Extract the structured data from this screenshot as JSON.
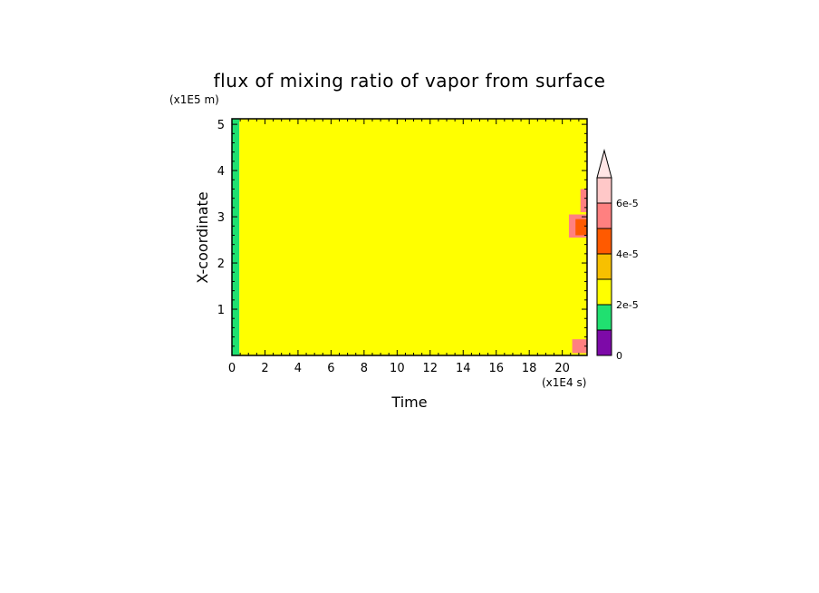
{
  "chart_data": {
    "type": "heatmap",
    "title": "flux of mixing ratio of vapor from surface",
    "xlabel": "Time",
    "ylabel": "X-coordinate",
    "x_unit": "(x1E4 s)",
    "y_unit": "(x1E5 m)",
    "xlim": [
      0,
      21.5
    ],
    "ylim": [
      0,
      5.12
    ],
    "x_ticks": [
      "0",
      "2",
      "4",
      "6",
      "8",
      "10",
      "12",
      "14",
      "16",
      "18",
      "20"
    ],
    "y_ticks": [
      "1",
      "2",
      "3",
      "4",
      "5"
    ],
    "x_tick_values": [
      0,
      2,
      4,
      6,
      8,
      10,
      12,
      14,
      16,
      18,
      20
    ],
    "y_tick_values": [
      1,
      2,
      3,
      4,
      5
    ],
    "background_level": "2e-5 to 3e-5",
    "regions": [
      {
        "x0": 0,
        "x1": 0.45,
        "y0": 0,
        "y1": 5.12,
        "level": 1
      },
      {
        "x0": 0.45,
        "x1": 21.5,
        "y0": 0,
        "y1": 5.12,
        "level": 2
      },
      {
        "x0": 20.4,
        "x1": 21.5,
        "y0": 2.55,
        "y1": 3.05,
        "level": 5
      },
      {
        "x0": 20.8,
        "x1": 21.5,
        "y0": 2.6,
        "y1": 2.95,
        "level": 4
      },
      {
        "x0": 20.6,
        "x1": 21.5,
        "y0": 0.05,
        "y1": 0.35,
        "level": 5
      },
      {
        "x0": 21.1,
        "x1": 21.5,
        "y0": 3.1,
        "y1": 3.6,
        "level": 5
      }
    ],
    "colorbar": {
      "levels": [
        0,
        1e-05,
        2e-05,
        3e-05,
        4e-05,
        5e-05,
        6e-05,
        7e-05
      ],
      "labels": [
        "0",
        "2e-5",
        "4e-5",
        "6e-5"
      ],
      "label_values": [
        0,
        2e-05,
        4e-05,
        6e-05
      ],
      "colors": [
        "#7d0aa8",
        "#20e070",
        "#ffff00",
        "#f7c000",
        "#ff5a00",
        "#ff8080",
        "#ffc8c8"
      ],
      "extend": "max",
      "extend_color": "#ffe6e6"
    }
  }
}
